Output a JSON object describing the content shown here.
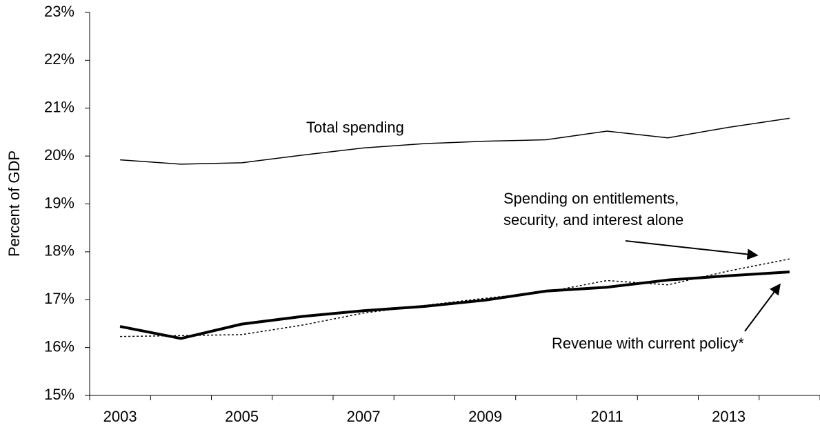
{
  "chart_data": {
    "type": "line",
    "y_label": "Percent of GDP",
    "categories": [
      "2003",
      null,
      "2005",
      null,
      "2007",
      null,
      "2009",
      null,
      "2011",
      null,
      "2013",
      null
    ],
    "series": [
      {
        "name": "Total spending",
        "color": "#000000",
        "width": 1.5,
        "dash": "none",
        "values": [
          19.92,
          19.83,
          19.86,
          20.02,
          20.17,
          20.26,
          20.31,
          20.34,
          20.52,
          20.38,
          20.6,
          20.79
        ]
      },
      {
        "name": "Spending on entitlements, security, and interest alone",
        "color": "#000000",
        "width": 1.5,
        "dash": "3 3",
        "values": [
          16.23,
          16.25,
          16.27,
          16.47,
          16.72,
          16.88,
          17.03,
          17.16,
          17.4,
          17.31,
          17.6,
          17.85
        ]
      },
      {
        "name": "Revenue with current policy*",
        "color": "#000000",
        "width": 4,
        "dash": "none",
        "values": [
          16.44,
          16.19,
          16.49,
          16.65,
          16.77,
          16.86,
          16.99,
          17.18,
          17.26,
          17.41,
          17.5,
          17.58
        ]
      }
    ],
    "ylim": [
      15,
      23
    ],
    "yticks": [
      {
        "value": 15,
        "label": "15%"
      },
      {
        "value": 16,
        "label": "16%"
      },
      {
        "value": 17,
        "label": "17%"
      },
      {
        "value": 18,
        "label": "18%"
      },
      {
        "value": 19,
        "label": "19%"
      },
      {
        "value": 20,
        "label": "20%"
      },
      {
        "value": 21,
        "label": "21%"
      },
      {
        "value": 22,
        "label": "22%"
      },
      {
        "value": 23,
        "label": "23%"
      }
    ],
    "grid": false
  }
}
